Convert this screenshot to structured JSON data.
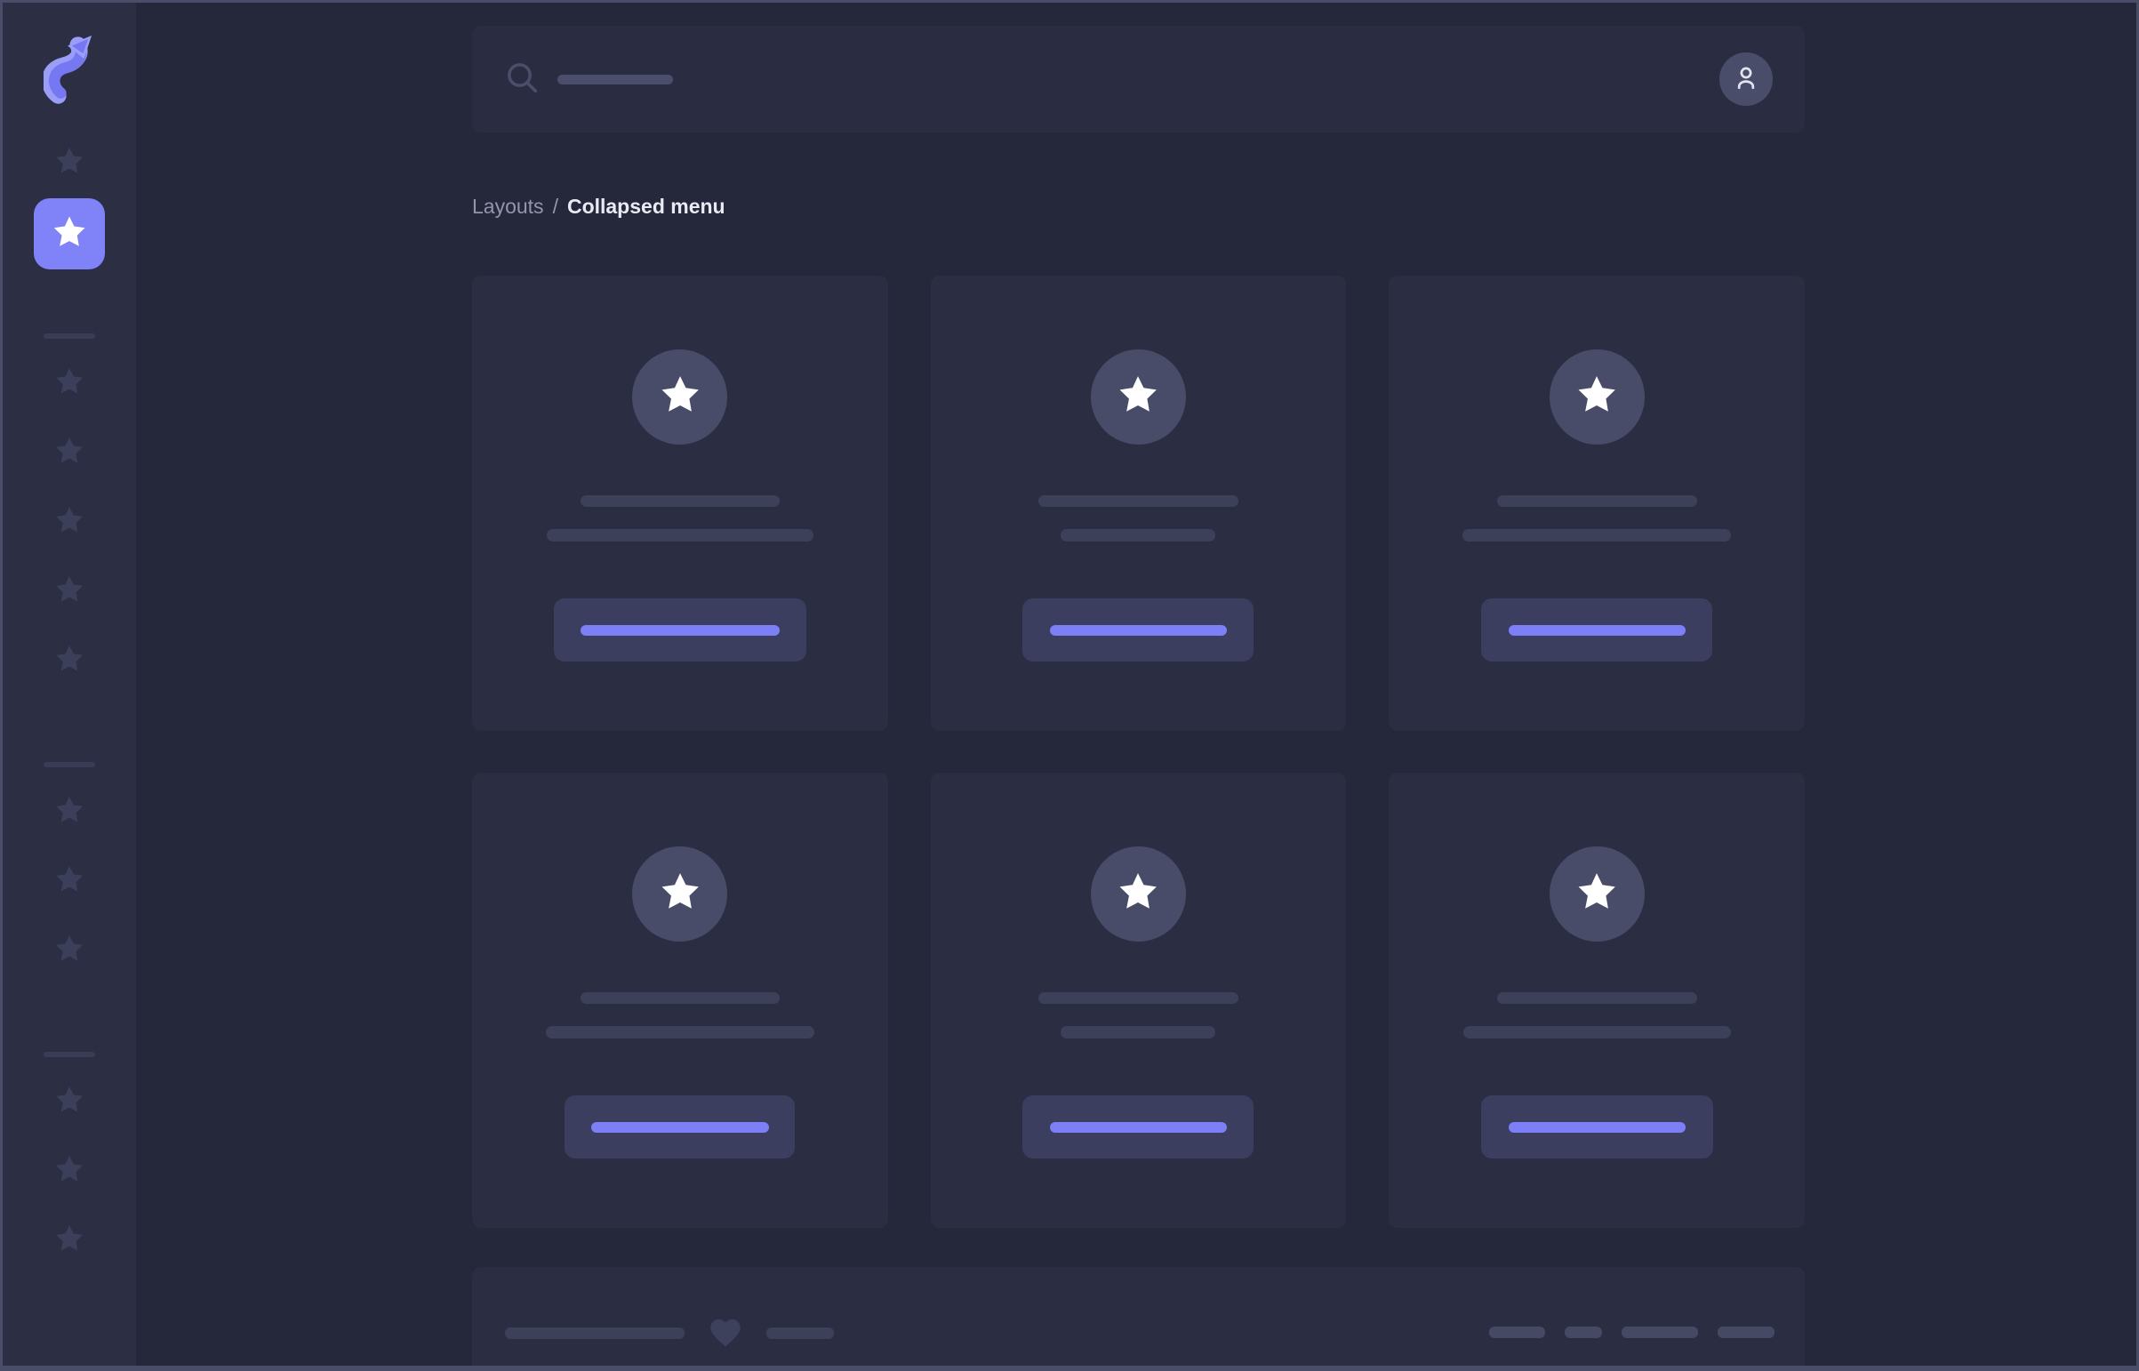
{
  "colors": {
    "frame_border": "#4a4d67",
    "main_bg": "#25273a",
    "sidebar_bg": "#2c2f44",
    "panel_bg": "#2a2d41",
    "card_bg": "#2b2e42",
    "skeleton": "#3d4059",
    "pill": "#464963",
    "heart": "#3e415c",
    "icon_slate": "#4b4e6a",
    "avatar_bg": "#4a4d69",
    "card_avatar_bg": "#494c68",
    "button_bg": "#3b3e5e",
    "accent": "#7c7ff5",
    "accent_strong": "#7f83f7",
    "logo_main": "#7678f1",
    "logo_light": "#9b9ef8",
    "sidebar_star": "#3c3f5a",
    "sidebar_divider": "#393c55",
    "text_muted": "#9296ad",
    "text_bright": "#e9eaf4",
    "icon_on_dark": "#e3e4f0",
    "star_white": "#ffffff"
  },
  "sidebar": {
    "logo_icon": "app-logo-arrow-s",
    "top_items": [
      {
        "icon": "star-icon",
        "state": "default"
      },
      {
        "icon": "star-icon",
        "state": "active"
      }
    ],
    "groups": [
      {
        "star_count": 5
      },
      {
        "star_count": 3
      },
      {
        "star_count": 3
      }
    ]
  },
  "header": {
    "search_icon": "magnifier-icon",
    "search_placeholder_skeleton_width": 130,
    "avatar_icon": "user-icon"
  },
  "breadcrumb": {
    "parent": "Layouts",
    "separator": "/",
    "current": "Collapsed menu"
  },
  "cards": [
    {
      "avatar_icon": "star-icon",
      "line1_width": 224,
      "line2_width": 300,
      "button_width": 284,
      "button_line_width": 224
    },
    {
      "avatar_icon": "star-icon",
      "line1_width": 225,
      "line2_width": 174,
      "button_width": 260,
      "button_line_width": 199
    },
    {
      "avatar_icon": "star-icon",
      "line1_width": 225,
      "line2_width": 302,
      "button_width": 260,
      "button_line_width": 199
    },
    {
      "avatar_icon": "star-icon",
      "line1_width": 224,
      "line2_width": 302,
      "button_width": 259,
      "button_line_width": 200
    },
    {
      "avatar_icon": "star-icon",
      "line1_width": 225,
      "line2_width": 174,
      "button_width": 260,
      "button_line_width": 199
    },
    {
      "avatar_icon": "star-icon",
      "line1_width": 225,
      "line2_width": 301,
      "button_width": 261,
      "button_line_width": 199
    }
  ],
  "footer": {
    "left_line_widths": [
      202,
      76
    ],
    "heart_icon": "heart-icon",
    "link_pill_widths": [
      63,
      42,
      86,
      64
    ]
  }
}
